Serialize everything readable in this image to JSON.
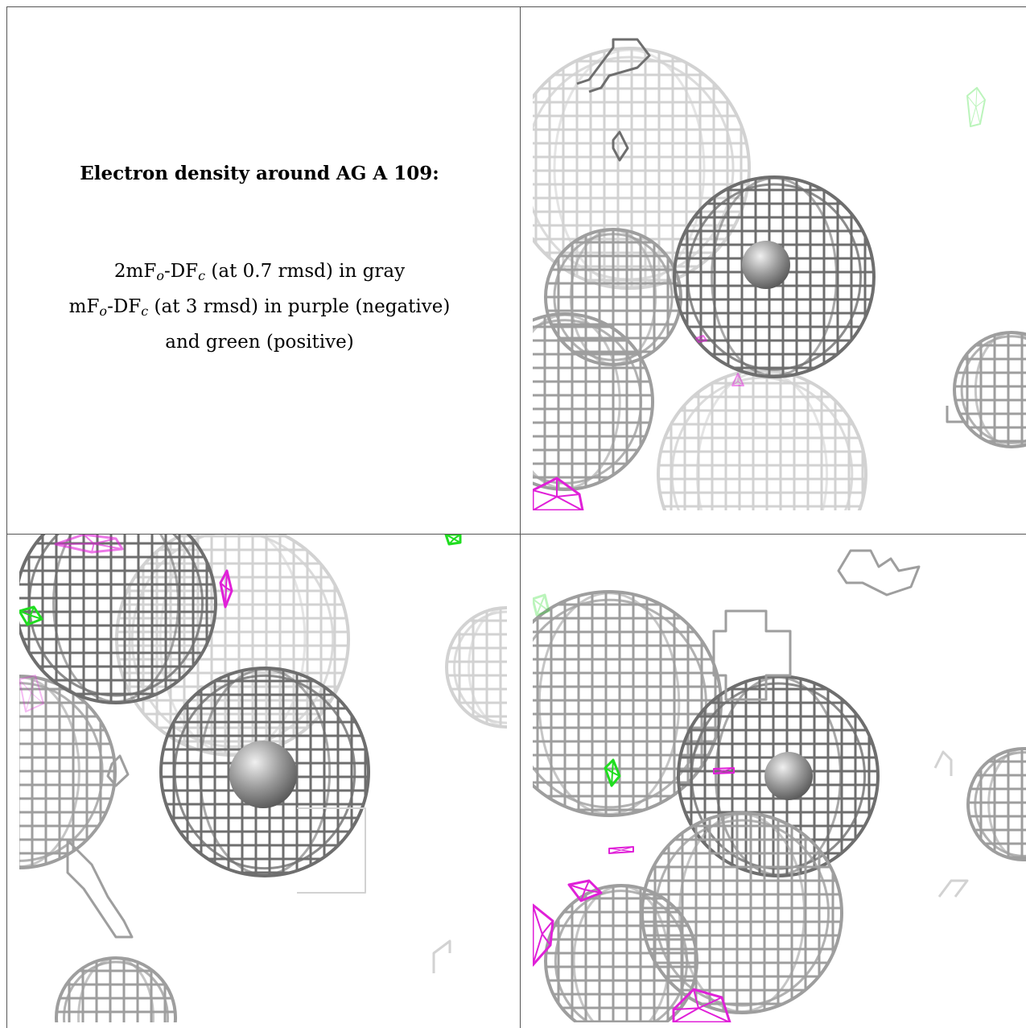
{
  "legend": {
    "title": "Electron density around AG A 109:",
    "line1": {
      "pre": "2mF",
      "sub1": "o",
      "mid": "-DF",
      "sub2": "c",
      "post": " (at 0.7 rmsd) in gray"
    },
    "line2": {
      "pre": "mF",
      "sub1": "o",
      "mid": "-DF",
      "sub2": "c",
      "post": " (at 3 rmsd) in purple (negative)"
    },
    "line3": "and green (positive)"
  },
  "colors": {
    "mesh_dark": "#6e6e6e",
    "mesh_mid": "#9e9e9e",
    "mesh_light": "#d2d2d2",
    "negative": "#e020d8",
    "positive": "#20dd20",
    "atom": "#9a9a9a"
  },
  "panels": [
    {
      "id": "top-right",
      "view": "ag-site-view-1"
    },
    {
      "id": "bottom-left",
      "view": "ag-site-view-2"
    },
    {
      "id": "bottom-right",
      "view": "ag-site-view-3"
    }
  ]
}
